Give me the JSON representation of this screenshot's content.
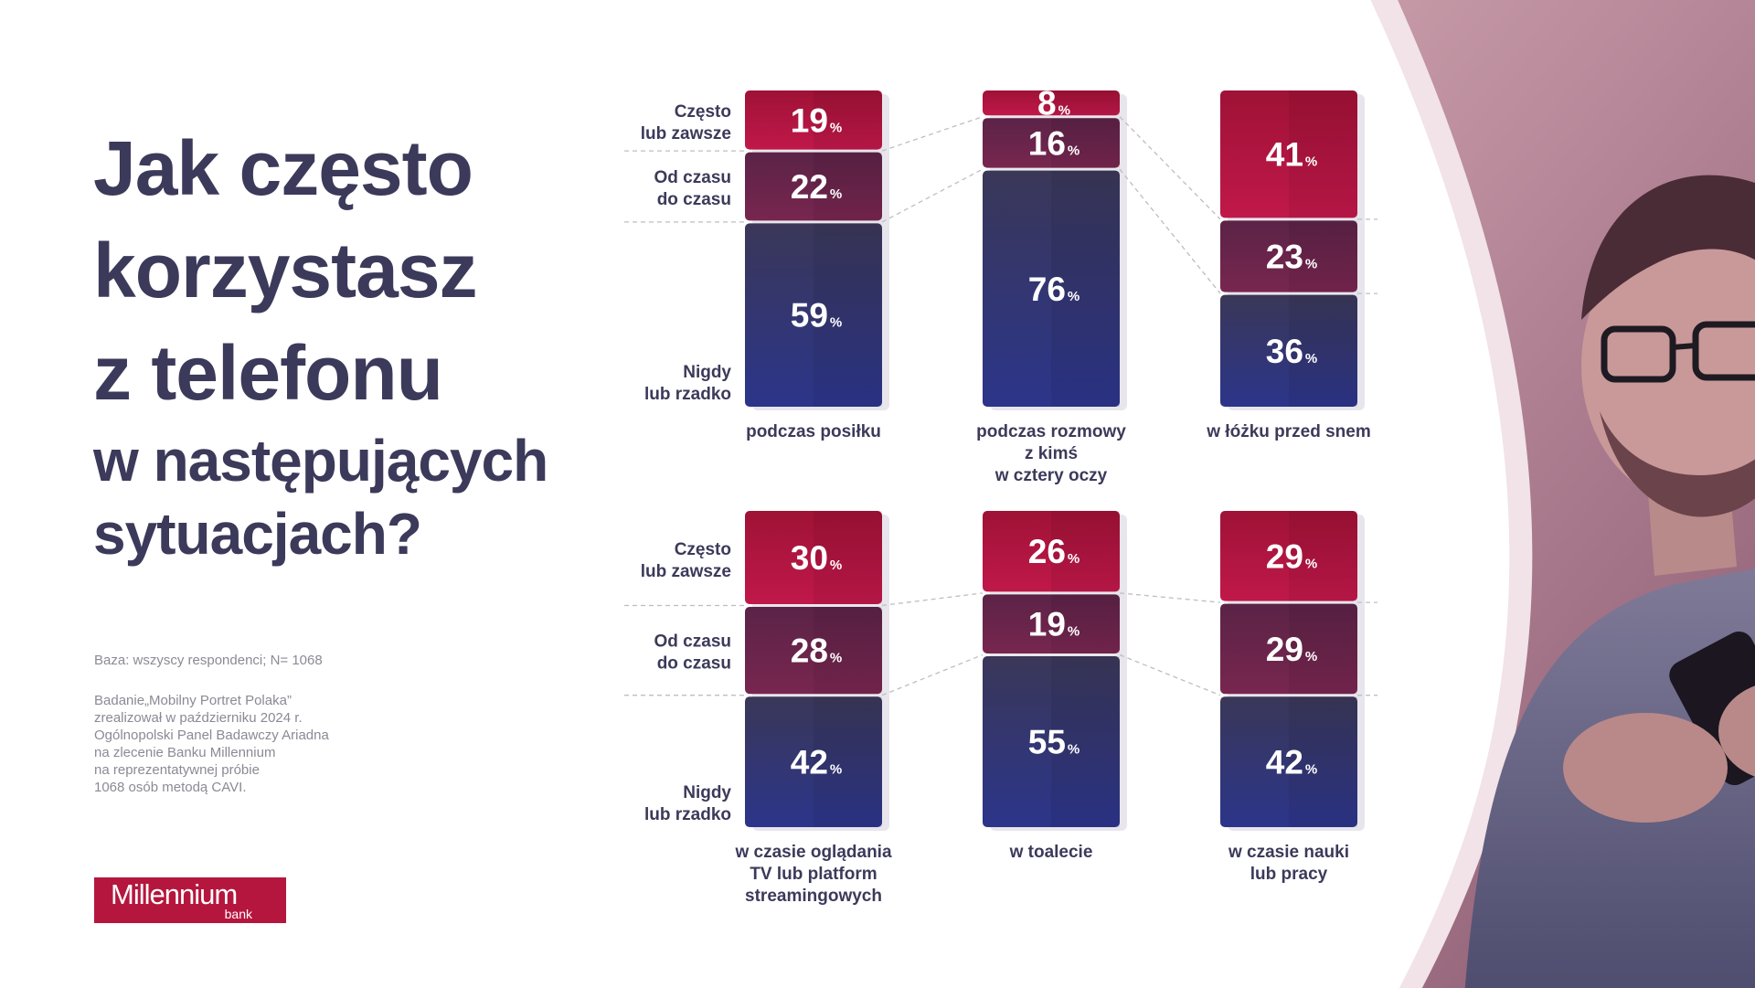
{
  "title": {
    "line1": "Jak często",
    "line2": "korzystasz",
    "line3": "z telefonu",
    "line4": "w następujących",
    "line5": "sytuacjach?"
  },
  "notes": {
    "base": "Baza: wszyscy respondenci; N= 1068",
    "study": [
      "Badanie„Mobilny Portret Polaka”",
      "zrealizował w październiku 2024 r.",
      "Ogólnopolski Panel Badawczy Ariadna",
      "na zlecenie Banku Millennium",
      "na reprezentatywnej próbie",
      "1068 osób metodą CAVI."
    ]
  },
  "logo": {
    "name": "Millennium",
    "sub": "bank"
  },
  "colors": {
    "often": "#b5163e",
    "sometimes": "#6a2350",
    "never": "#2f3475",
    "text": "#3c3a5a"
  },
  "chart_data": {
    "type": "bar",
    "stacked": true,
    "unit": "%",
    "series_labels": {
      "often": [
        "Często",
        "lub zawsze"
      ],
      "sometimes": [
        "Od czasu",
        "do czasu"
      ],
      "never": [
        "Nigdy",
        "lub rzadko"
      ]
    },
    "categories": [
      {
        "label": [
          "podczas posiłku"
        ],
        "often": 19,
        "sometimes": 22,
        "never": 59
      },
      {
        "label": [
          "podczas rozmowy",
          "z kimś",
          "w cztery oczy"
        ],
        "often": 8,
        "sometimes": 16,
        "never": 76
      },
      {
        "label": [
          "w łóżku przed snem"
        ],
        "often": 41,
        "sometimes": 23,
        "never": 36
      },
      {
        "label": [
          "w czasie oglądania",
          "TV lub platform",
          "streamingowych"
        ],
        "often": 30,
        "sometimes": 28,
        "never": 42
      },
      {
        "label": [
          "w toalecie"
        ],
        "often": 26,
        "sometimes": 19,
        "never": 55
      },
      {
        "label": [
          "w czasie nauki",
          "lub pracy"
        ],
        "often": 29,
        "sometimes": 29,
        "never": 42
      }
    ]
  }
}
